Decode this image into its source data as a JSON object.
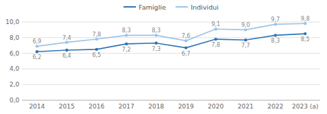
{
  "chart_data": {
    "type": "line",
    "categories": [
      "2014",
      "2015",
      "2016",
      "2017",
      "2018",
      "2019",
      "2020",
      "2021",
      "2022",
      "2023 (a)"
    ],
    "series": [
      {
        "name": "Famiglie",
        "color": "#2e75b6",
        "marker": "circle",
        "values": [
          6.2,
          6.4,
          6.5,
          7.2,
          7.3,
          6.7,
          7.8,
          7.7,
          8.3,
          8.5
        ],
        "value_labels": [
          "6,2",
          "6,4",
          "6,5",
          "7,2",
          "7,3",
          "6,7",
          "7,8",
          "7,7",
          "8,3",
          "8,5"
        ]
      },
      {
        "name": "Individui",
        "color": "#9dc3e6",
        "marker": "circle",
        "values": [
          6.9,
          7.4,
          7.8,
          8.3,
          8.3,
          7.6,
          9.1,
          9.0,
          9.7,
          9.8
        ],
        "value_labels": [
          "6,9",
          "7,4",
          "7,8",
          "8,3",
          "8,3",
          "7,6",
          "9,1",
          "9,0",
          "9,7",
          "9,8"
        ]
      }
    ],
    "ylim": [
      0.0,
      10.0
    ],
    "yticks": [
      {
        "value": 0.0,
        "label": "0,0"
      },
      {
        "value": 2.0,
        "label": "2,0"
      },
      {
        "value": 4.0,
        "label": "4,0"
      },
      {
        "value": 6.0,
        "label": "6,0"
      },
      {
        "value": 8.0,
        "label": "8,0"
      },
      {
        "value": 10.0,
        "label": "10,0"
      }
    ],
    "grid": true,
    "legend": "top",
    "data_labels": true
  }
}
